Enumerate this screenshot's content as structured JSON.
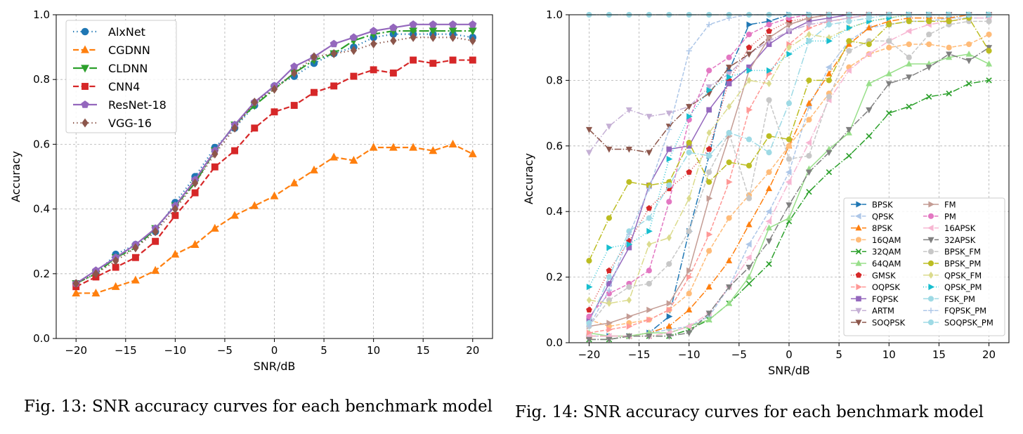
{
  "chart_data": [
    {
      "type": "line",
      "title": "",
      "xlabel": "SNR/dB",
      "ylabel": "Accuracy",
      "xlim": [
        -22,
        22
      ],
      "ylim": [
        0,
        1
      ],
      "xticks": [
        -20,
        -15,
        -10,
        -5,
        0,
        5,
        10,
        15,
        20
      ],
      "yticks": [
        0.0,
        0.2,
        0.4,
        0.6,
        0.8,
        1.0
      ],
      "grid": true,
      "legend_position": "top-left",
      "x": [
        -20,
        -18,
        -16,
        -14,
        -12,
        -10,
        -8,
        -6,
        -4,
        -2,
        0,
        2,
        4,
        6,
        8,
        10,
        12,
        14,
        16,
        18,
        20
      ],
      "series": [
        {
          "name": "AlxNet",
          "color": "#1f77b4",
          "marker": "circle",
          "dash": "dot",
          "values": [
            0.17,
            0.2,
            0.26,
            0.29,
            0.33,
            0.42,
            0.5,
            0.59,
            0.65,
            0.72,
            0.78,
            0.81,
            0.85,
            0.88,
            0.9,
            0.93,
            0.94,
            0.94,
            0.94,
            0.94,
            0.93
          ]
        },
        {
          "name": "CGDNN",
          "color": "#ff7f0e",
          "marker": "triangle-up",
          "dash": "dash",
          "values": [
            0.14,
            0.14,
            0.16,
            0.18,
            0.21,
            0.26,
            0.29,
            0.34,
            0.38,
            0.41,
            0.44,
            0.48,
            0.52,
            0.56,
            0.55,
            0.59,
            0.59,
            0.59,
            0.58,
            0.6,
            0.57
          ]
        },
        {
          "name": "CLDNN",
          "color": "#2ca02c",
          "marker": "triangle-down",
          "dash": "dashdot",
          "values": [
            0.17,
            0.2,
            0.25,
            0.28,
            0.34,
            0.41,
            0.48,
            0.58,
            0.66,
            0.72,
            0.77,
            0.82,
            0.86,
            0.88,
            0.92,
            0.94,
            0.95,
            0.95,
            0.95,
            0.95,
            0.95
          ]
        },
        {
          "name": "CNN4",
          "color": "#d62728",
          "marker": "square",
          "dash": "dash",
          "values": [
            0.16,
            0.19,
            0.22,
            0.25,
            0.3,
            0.38,
            0.45,
            0.53,
            0.58,
            0.65,
            0.7,
            0.72,
            0.76,
            0.78,
            0.81,
            0.83,
            0.82,
            0.86,
            0.85,
            0.86,
            0.86
          ]
        },
        {
          "name": "ResNet-18",
          "color": "#9467bd",
          "marker": "pentagon",
          "dash": "solid",
          "values": [
            0.17,
            0.21,
            0.25,
            0.29,
            0.34,
            0.41,
            0.49,
            0.58,
            0.66,
            0.73,
            0.78,
            0.84,
            0.87,
            0.91,
            0.93,
            0.95,
            0.96,
            0.97,
            0.97,
            0.97,
            0.97
          ]
        },
        {
          "name": "VGG-16",
          "color": "#8c564b",
          "marker": "diamond",
          "dash": "dot",
          "values": [
            0.17,
            0.2,
            0.24,
            0.28,
            0.33,
            0.4,
            0.48,
            0.57,
            0.65,
            0.73,
            0.77,
            0.82,
            0.87,
            0.88,
            0.89,
            0.91,
            0.92,
            0.93,
            0.93,
            0.93,
            0.92
          ]
        }
      ]
    },
    {
      "type": "line",
      "title": "",
      "xlabel": "SNR/dB",
      "ylabel": "Accuracy",
      "xlim": [
        -22,
        22
      ],
      "ylim": [
        0,
        1
      ],
      "xticks": [
        -20,
        -15,
        -10,
        -5,
        0,
        5,
        10,
        15,
        20
      ],
      "yticks": [
        0.0,
        0.2,
        0.4,
        0.6,
        0.8,
        1.0
      ],
      "grid": true,
      "legend_position": "lower-right",
      "x": [
        -20,
        -18,
        -16,
        -14,
        -12,
        -10,
        -8,
        -6,
        -4,
        -2,
        0,
        2,
        4,
        6,
        8,
        10,
        12,
        14,
        16,
        18,
        20
      ],
      "series": [
        {
          "name": "BPSK",
          "color": "#1f77b4",
          "marker": "triangle-right",
          "dash": "dashdot",
          "values": [
            0.02,
            0.02,
            0.02,
            0.03,
            0.08,
            0.34,
            0.57,
            0.83,
            0.97,
            0.98,
            1.0,
            1.0,
            1.0,
            1.0,
            1.0,
            1.0,
            1.0,
            1.0,
            1.0,
            1.0,
            1.0
          ]
        },
        {
          "name": "QPSK",
          "color": "#aec7e8",
          "marker": "triangle-left",
          "dash": "dash",
          "values": [
            0.02,
            0.02,
            0.02,
            0.03,
            0.04,
            0.05,
            0.08,
            0.17,
            0.3,
            0.4,
            0.52,
            0.72,
            0.84,
            0.92,
            0.96,
            0.97,
            0.98,
            0.98,
            0.99,
            0.99,
            0.99
          ]
        },
        {
          "name": "8PSK",
          "color": "#ff7f0e",
          "marker": "triangle-up",
          "dash": "dashdot",
          "values": [
            0.02,
            0.02,
            0.02,
            0.03,
            0.05,
            0.1,
            0.17,
            0.25,
            0.36,
            0.47,
            0.6,
            0.73,
            0.82,
            0.91,
            0.96,
            0.98,
            0.99,
            0.99,
            0.99,
            1.0,
            1.0
          ]
        },
        {
          "name": "16QAM",
          "color": "#ffbb78",
          "marker": "circle",
          "dash": "dash",
          "values": [
            0.07,
            0.05,
            0.06,
            0.07,
            0.1,
            0.15,
            0.28,
            0.38,
            0.45,
            0.52,
            0.6,
            0.68,
            0.76,
            0.84,
            0.88,
            0.9,
            0.91,
            0.91,
            0.9,
            0.91,
            0.94
          ]
        },
        {
          "name": "32QAM",
          "color": "#2ca02c",
          "marker": "x",
          "dash": "dashdot",
          "values": [
            0.01,
            0.01,
            0.02,
            0.02,
            0.02,
            0.04,
            0.07,
            0.12,
            0.18,
            0.24,
            0.37,
            0.46,
            0.52,
            0.57,
            0.63,
            0.7,
            0.72,
            0.75,
            0.76,
            0.79,
            0.8
          ]
        },
        {
          "name": "64QAM",
          "color": "#98df8a",
          "marker": "triangle-up",
          "dash": "solid",
          "values": [
            0.03,
            0.02,
            0.02,
            0.03,
            0.03,
            0.05,
            0.07,
            0.12,
            0.2,
            0.35,
            0.38,
            0.53,
            0.59,
            0.64,
            0.79,
            0.82,
            0.85,
            0.85,
            0.87,
            0.88,
            0.85
          ]
        },
        {
          "name": "GMSK",
          "color": "#d62728",
          "marker": "pentagon",
          "dash": "dot",
          "values": [
            0.1,
            0.22,
            0.31,
            0.41,
            0.47,
            0.52,
            0.59,
            0.8,
            0.9,
            0.95,
            0.98,
            0.99,
            1.0,
            1.0,
            1.0,
            1.0,
            1.0,
            1.0,
            1.0,
            1.0,
            1.0
          ]
        },
        {
          "name": "OQPSK",
          "color": "#ff9896",
          "marker": "triangle-right",
          "dash": "dash",
          "values": [
            0.03,
            0.04,
            0.05,
            0.07,
            0.1,
            0.2,
            0.33,
            0.49,
            0.71,
            0.82,
            0.91,
            0.96,
            0.98,
            0.99,
            1.0,
            1.0,
            1.0,
            1.0,
            1.0,
            1.0,
            1.0
          ]
        },
        {
          "name": "FQPSK",
          "color": "#9467bd",
          "marker": "square",
          "dash": "solid",
          "values": [
            0.07,
            0.18,
            0.29,
            0.48,
            0.59,
            0.6,
            0.71,
            0.79,
            0.84,
            0.91,
            0.95,
            0.98,
            0.99,
            1.0,
            1.0,
            1.0,
            1.0,
            1.0,
            1.0,
            1.0,
            1.0
          ]
        },
        {
          "name": "ARTM",
          "color": "#c5b0d5",
          "marker": "triangle-down",
          "dash": "dashdot",
          "values": [
            0.58,
            0.66,
            0.71,
            0.69,
            0.7,
            0.72,
            0.78,
            0.82,
            0.88,
            0.92,
            0.95,
            0.97,
            0.98,
            0.99,
            1.0,
            1.0,
            1.0,
            1.0,
            1.0,
            1.0,
            1.0
          ]
        },
        {
          "name": "SOQPSK",
          "color": "#8c564b",
          "marker": "triangle-down",
          "dash": "dashdot",
          "values": [
            0.65,
            0.59,
            0.59,
            0.58,
            0.66,
            0.72,
            0.76,
            0.84,
            0.88,
            0.93,
            0.97,
            0.99,
            1.0,
            1.0,
            1.0,
            1.0,
            1.0,
            1.0,
            1.0,
            1.0,
            1.0
          ]
        },
        {
          "name": "FM",
          "color": "#c49c94",
          "marker": "triangle-right",
          "dash": "solid",
          "values": [
            0.05,
            0.06,
            0.08,
            0.1,
            0.12,
            0.22,
            0.44,
            0.63,
            0.83,
            0.93,
            0.97,
            0.99,
            1.0,
            1.0,
            1.0,
            1.0,
            1.0,
            1.0,
            1.0,
            1.0,
            1.0
          ]
        },
        {
          "name": "PM",
          "color": "#e377c2",
          "marker": "circle",
          "dash": "dash",
          "values": [
            0.08,
            0.15,
            0.18,
            0.22,
            0.43,
            0.68,
            0.83,
            0.87,
            0.94,
            0.97,
            0.99,
            1.0,
            1.0,
            1.0,
            1.0,
            1.0,
            1.0,
            1.0,
            1.0,
            1.0,
            1.0
          ]
        },
        {
          "name": "16APSK",
          "color": "#f7b6d2",
          "marker": "triangle-left",
          "dash": "dashdot",
          "values": [
            0.02,
            0.02,
            0.02,
            0.02,
            0.03,
            0.05,
            0.09,
            0.17,
            0.26,
            0.37,
            0.49,
            0.61,
            0.74,
            0.83,
            0.88,
            0.92,
            0.95,
            0.97,
            0.98,
            0.99,
            0.99
          ]
        },
        {
          "name": "32APSK",
          "color": "#7f7f7f",
          "marker": "triangle-down",
          "dash": "dashdot",
          "values": [
            0.01,
            0.01,
            0.02,
            0.02,
            0.02,
            0.03,
            0.09,
            0.17,
            0.23,
            0.31,
            0.42,
            0.52,
            0.58,
            0.65,
            0.71,
            0.79,
            0.81,
            0.84,
            0.88,
            0.86,
            0.9
          ]
        },
        {
          "name": "BPSK_FM",
          "color": "#c7c7c7",
          "marker": "circle",
          "dash": "dash",
          "values": [
            0.05,
            0.13,
            0.17,
            0.18,
            0.24,
            0.34,
            0.52,
            0.64,
            0.44,
            0.74,
            0.56,
            0.57,
            0.75,
            0.89,
            0.92,
            0.92,
            0.87,
            0.94,
            0.97,
            0.98,
            0.98
          ]
        },
        {
          "name": "BPSK_PM",
          "color": "#bcbd22",
          "marker": "circle",
          "dash": "dashdot",
          "values": [
            0.25,
            0.38,
            0.49,
            0.48,
            0.49,
            0.61,
            0.49,
            0.55,
            0.54,
            0.63,
            0.62,
            0.8,
            0.8,
            0.92,
            0.91,
            0.97,
            0.98,
            0.98,
            0.98,
            0.99,
            0.89
          ]
        },
        {
          "name": "QPSK_FM",
          "color": "#dbdb8d",
          "marker": "diamond",
          "dash": "dashdot",
          "values": [
            0.13,
            0.12,
            0.13,
            0.3,
            0.32,
            0.44,
            0.64,
            0.72,
            0.8,
            0.79,
            0.9,
            0.94,
            0.93,
            0.96,
            0.98,
            0.99,
            1.0,
            1.0,
            1.0,
            1.0,
            1.0
          ]
        },
        {
          "name": "QPSK_PM",
          "color": "#17becf",
          "marker": "triangle-right",
          "dash": "dot",
          "values": [
            0.17,
            0.29,
            0.3,
            0.34,
            0.56,
            0.69,
            0.77,
            0.81,
            0.83,
            0.83,
            0.88,
            0.92,
            0.92,
            0.96,
            0.98,
            0.99,
            1.0,
            1.0,
            1.0,
            1.0,
            1.0
          ]
        },
        {
          "name": "FSK_PM",
          "color": "#9edae5",
          "marker": "circle",
          "dash": "dashdot",
          "values": [
            0.06,
            0.2,
            0.34,
            0.38,
            0.48,
            0.58,
            0.57,
            0.64,
            0.62,
            0.58,
            0.73,
            0.92,
            0.97,
            0.98,
            0.99,
            1.0,
            1.0,
            1.0,
            1.0,
            1.0,
            1.0
          ]
        },
        {
          "name": "FQPSK_PM",
          "color": "#aec7e8",
          "marker": "plus",
          "dash": "dash",
          "values": [
            0.05,
            0.16,
            0.33,
            0.47,
            0.65,
            0.89,
            0.97,
            0.99,
            1.0,
            1.0,
            1.0,
            1.0,
            1.0,
            1.0,
            1.0,
            1.0,
            1.0,
            1.0,
            1.0,
            1.0,
            1.0
          ]
        },
        {
          "name": "SOQPSK_PM",
          "color": "#9edae5",
          "marker": "circle",
          "dash": "dashdot",
          "values": [
            1.0,
            1.0,
            1.0,
            1.0,
            1.0,
            1.0,
            1.0,
            1.0,
            1.0,
            1.0,
            1.0,
            1.0,
            1.0,
            1.0,
            1.0,
            1.0,
            1.0,
            1.0,
            1.0,
            1.0,
            1.0
          ]
        }
      ]
    }
  ],
  "captions": {
    "fig13": "Fig. 13: SNR accuracy curves for each benchmark model",
    "fig14": "Fig. 14: SNR accuracy curves for each benchmark model"
  }
}
